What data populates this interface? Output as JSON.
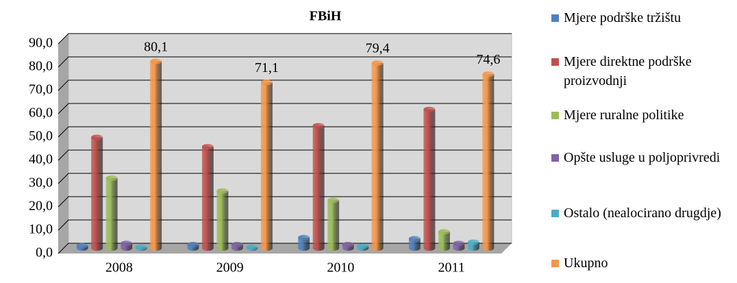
{
  "chart_data": {
    "type": "bar3d",
    "title": "FBiH",
    "categories": [
      "2008",
      "2009",
      "2010",
      "2011"
    ],
    "series": [
      {
        "name": "Mjere podrške tržištu",
        "color": "#4f81bd",
        "values": [
          1.0,
          1.5,
          4.5,
          4.0
        ]
      },
      {
        "name": "Mjere direktne podrške proizvodnji",
        "color": "#c0504d",
        "values": [
          47.5,
          43.5,
          52.5,
          59.5
        ]
      },
      {
        "name": "Mjere ruralne politike",
        "color": "#9bbb59",
        "values": [
          30.0,
          24.5,
          20.5,
          7.0
        ]
      },
      {
        "name": "Opšte usluge u poljoprivredi",
        "color": "#8064a2",
        "values": [
          2.0,
          1.5,
          1.5,
          2.0
        ]
      },
      {
        "name": "Ostalo (nealocirano drugdje)",
        "color": "#4bacc6",
        "values": [
          0.3,
          0.3,
          0.8,
          2.5
        ]
      },
      {
        "name": "Ukupno",
        "color": "#f79646",
        "values": [
          80.1,
          71.1,
          79.4,
          74.6
        ],
        "value_labels": [
          "80,1",
          "71,1",
          "79,4",
          "74,6"
        ]
      }
    ],
    "ylim": [
      0,
      90
    ],
    "yticks": [
      {
        "value": 0,
        "label": "0,0"
      },
      {
        "value": 10,
        "label": "10,0"
      },
      {
        "value": 20,
        "label": "20,0"
      },
      {
        "value": 30,
        "label": "30,0"
      },
      {
        "value": 40,
        "label": "40,0"
      },
      {
        "value": 50,
        "label": "50,0"
      },
      {
        "value": 60,
        "label": "60,0"
      },
      {
        "value": 70,
        "label": "70,0"
      },
      {
        "value": 80,
        "label": "80,0"
      },
      {
        "value": 90,
        "label": "90,0"
      }
    ],
    "grid": true
  }
}
